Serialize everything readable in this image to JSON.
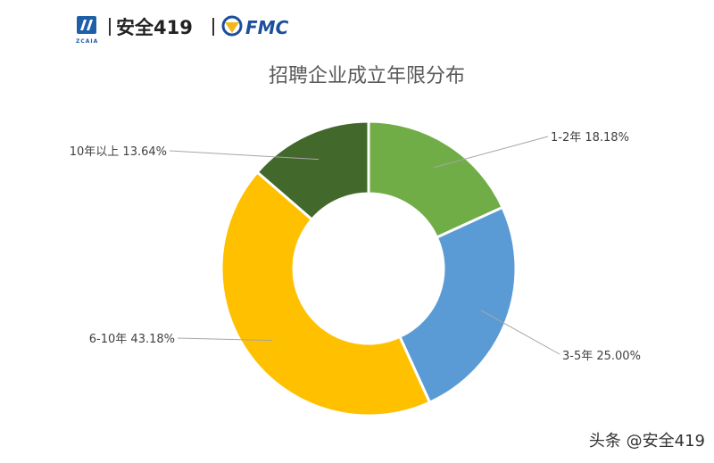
{
  "header": {
    "brand_sub": "ZCAIA",
    "brand_name": "安全419",
    "partner": "FMC",
    "colors": {
      "brand_blue": "#1f5fa8",
      "fmc_yellow": "#f2b71f",
      "fmc_blue": "#1b4f9c"
    }
  },
  "watermark": "头条 @安全419",
  "chart_data": {
    "type": "pie",
    "donut": true,
    "title": "招聘企业成立年限分布",
    "slices": [
      {
        "label": "1-2年 18.18%",
        "category": "1-2年",
        "value": 18.18,
        "color": "#70ad47"
      },
      {
        "label": "3-5年 25.00%",
        "category": "3-5年",
        "value": 25.0,
        "color": "#5b9bd5"
      },
      {
        "label": "6-10年 43.18%",
        "category": "6-10年",
        "value": 43.18,
        "color": "#ffc000"
      },
      {
        "label": "10年以上 13.64%",
        "category": "10年以上",
        "value": 13.64,
        "color": "#43682b"
      }
    ],
    "legend": "none"
  }
}
